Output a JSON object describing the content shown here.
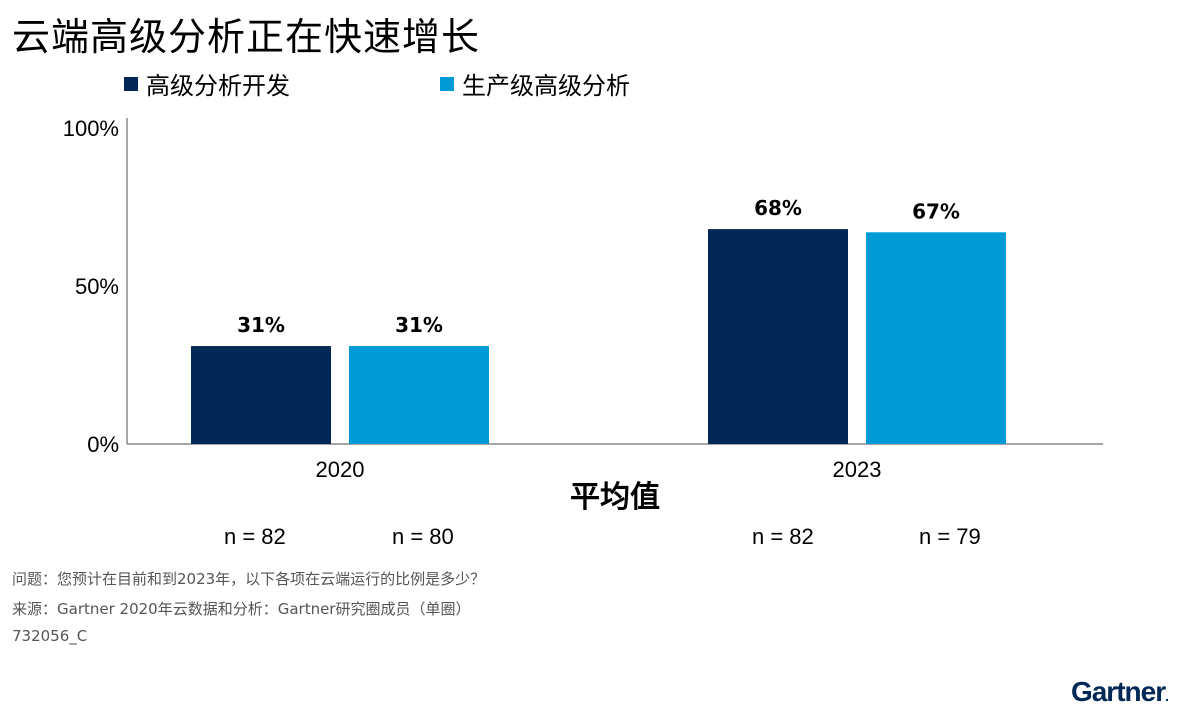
{
  "title": "云端高级分析正在快速增长",
  "chart_data": {
    "type": "bar",
    "categories": [
      "2020",
      "2023"
    ],
    "series": [
      {
        "name": "高级分析开发",
        "values": [
          31,
          68
        ],
        "color": "#002856",
        "labels": [
          "31%",
          "68%"
        ]
      },
      {
        "name": "生产级高级分析",
        "values": [
          31,
          67
        ],
        "color": "#009ad6",
        "labels": [
          "31%",
          "67%"
        ]
      }
    ],
    "ylim": [
      0,
      100
    ],
    "yticks": [
      0,
      50,
      100
    ],
    "ytick_labels": [
      "0%",
      "50%",
      "100%"
    ],
    "xlabel": "平均值",
    "ylabel": "",
    "legend": "top-left",
    "grid": false
  },
  "n_counts": [
    "n = 82",
    "n = 80",
    "n = 82",
    "n = 79"
  ],
  "footnotes": {
    "question": "问题：您预计在目前和到2023年，以下各项在云端运行的比例是多少？",
    "source": "来源：Gartner 2020年云数据和分析：Gartner研究圈成员（单圈）",
    "id": "732056_C"
  },
  "logo": "Gartner"
}
